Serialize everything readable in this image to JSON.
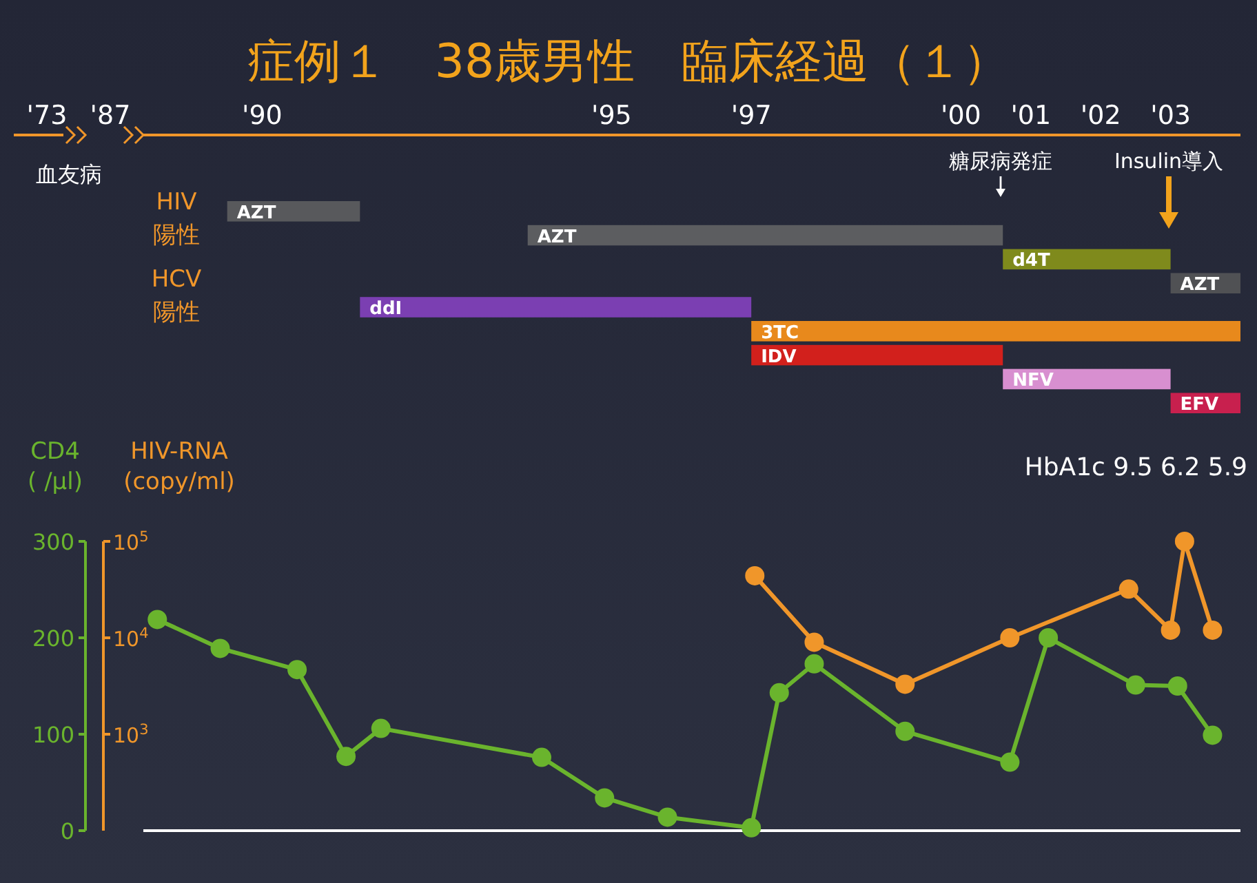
{
  "chart_data": [
    {
      "type": "bar",
      "title": "症例１　38歳男性　臨床経過（１）",
      "orientation": "horizontal",
      "categories": [
        null,
        null,
        null,
        null,
        null,
        null,
        null,
        null,
        null
      ],
      "xlim": [
        1988.3,
        2004
      ],
      "xticks": [
        {
          "value": 1990,
          "label": "'90"
        },
        {
          "value": 1995,
          "label": "'95"
        },
        {
          "value": 1997,
          "label": "'97"
        },
        {
          "value": 2000,
          "label": "'00"
        },
        {
          "value": 2001,
          "label": "'01"
        },
        {
          "value": 2002,
          "label": "'02"
        },
        {
          "value": 2003,
          "label": "'03"
        }
      ],
      "tick_labels": "x",
      "values": [
        1.9,
        6.8,
        2.4,
        1,
        5.6,
        7,
        3.6,
        2.4,
        1
      ],
      "base": [
        1989.5,
        1993.8,
        2000.6,
        2003,
        1991.4,
        1997,
        1997,
        2000.6,
        2003
      ],
      "colors": [
        "#58595c",
        "#5c5d60",
        "#7f8a1c",
        "#505154",
        "#7b3fb2",
        "#e8891c",
        "#d2201c",
        "#d88fd0",
        "#c8204e"
      ],
      "annotations": [
        "'73",
        "'87",
        "血友病",
        "HIV\n陽性",
        "HCV\n陽性",
        "糖尿病発症",
        "Insulin導入",
        {
          "text": "AZT",
          "x": 1989.5
        },
        {
          "text": "AZT",
          "x": 1993.8
        },
        {
          "text": "d4T",
          "x": 2000.6
        },
        {
          "text": "AZT",
          "x": 2003
        },
        {
          "text": "ddI",
          "x": 1991.4
        },
        {
          "text": "3TC",
          "x": 1997
        },
        {
          "text": "IDV",
          "x": 1997
        },
        {
          "text": "NFV",
          "x": 2000.6
        },
        {
          "text": "EFV",
          "x": 2003
        }
      ]
    },
    {
      "type": "line",
      "xlim": [
        1988.3,
        2004
      ],
      "ylim": [
        0,
        300
      ],
      "yticks": [
        0,
        100,
        200,
        300
      ],
      "y2lim": [
        100,
        100000
      ],
      "y2ticks": [
        {
          "value": 1000,
          "label": "10$^{3}$"
        },
        {
          "value": 10000,
          "label": "10$^{4}$"
        },
        {
          "value": 100000,
          "label": "10$^{5}$"
        }
      ],
      "log": "y2",
      "ylabel": "CD4\n( /μl)",
      "y2label": "HIV-RNA\n(copy/ml)",
      "tick_labels": "y",
      "marker": "circle",
      "series": [
        {
          "color": "#6ab42d",
          "x": [
            1988.5,
            1989.4,
            1990.5,
            1991.2,
            1991.7,
            1994.0,
            1994.9,
            1995.8,
            1997.0,
            1997.4,
            1997.9,
            1999.2,
            2000.7,
            2001.25,
            2002.5,
            2003.1,
            2003.6
          ],
          "values": [
            219,
            189,
            167,
            77,
            106,
            76,
            34,
            14,
            3,
            143,
            173,
            103,
            71,
            200,
            151,
            150,
            99
          ]
        },
        {
          "color": "#f0962a",
          "axis": "y2",
          "x": [
            1997.05,
            1997.9,
            1999.2,
            2000.7,
            2002.4,
            2003.0,
            2003.2,
            2003.6
          ],
          "values": [
            44000,
            9000,
            3300,
            10000,
            32000,
            12000,
            100000,
            12000
          ]
        }
      ],
      "annotations": [
        "HbA1c 9.5 6.2 5.9"
      ]
    }
  ]
}
